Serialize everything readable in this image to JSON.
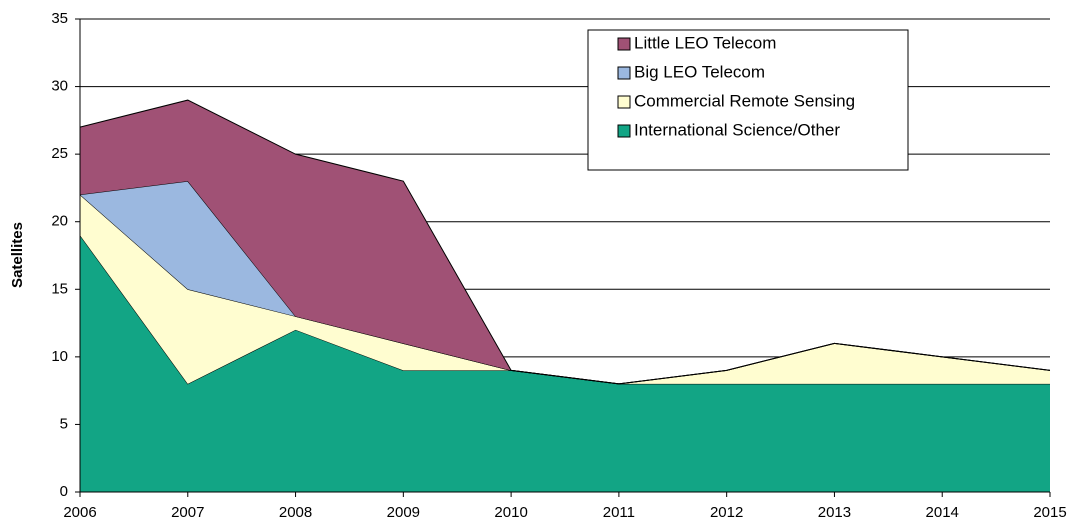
{
  "chart_data": {
    "type": "stacked-area",
    "y_label": "Satellites",
    "categories": [
      "2006",
      "2007",
      "2008",
      "2009",
      "2010",
      "2011",
      "2012",
      "2013",
      "2014",
      "2015"
    ],
    "series": [
      {
        "name": "International Science/Other",
        "color": "#12a585",
        "values": [
          19,
          8,
          12,
          9,
          9,
          8,
          8,
          8,
          8,
          8
        ]
      },
      {
        "name": "Commercial Remote Sensing",
        "color": "#fffdd0",
        "values": [
          3,
          7,
          1,
          2,
          0,
          0,
          1,
          3,
          2,
          1
        ]
      },
      {
        "name": "Big LEO Telecom",
        "color": "#9bb8e0",
        "values": [
          0,
          8,
          0,
          0,
          0,
          0,
          0,
          0,
          0,
          0
        ]
      },
      {
        "name": "Little LEO Telecom",
        "color": "#a05175",
        "values": [
          5,
          6,
          12,
          12,
          0,
          0,
          0,
          0,
          0,
          0
        ]
      }
    ],
    "ylim": [
      0,
      35
    ],
    "yticks": [
      0,
      5,
      10,
      15,
      20,
      25,
      30,
      35
    ],
    "grid": true,
    "legend": "top-right"
  }
}
